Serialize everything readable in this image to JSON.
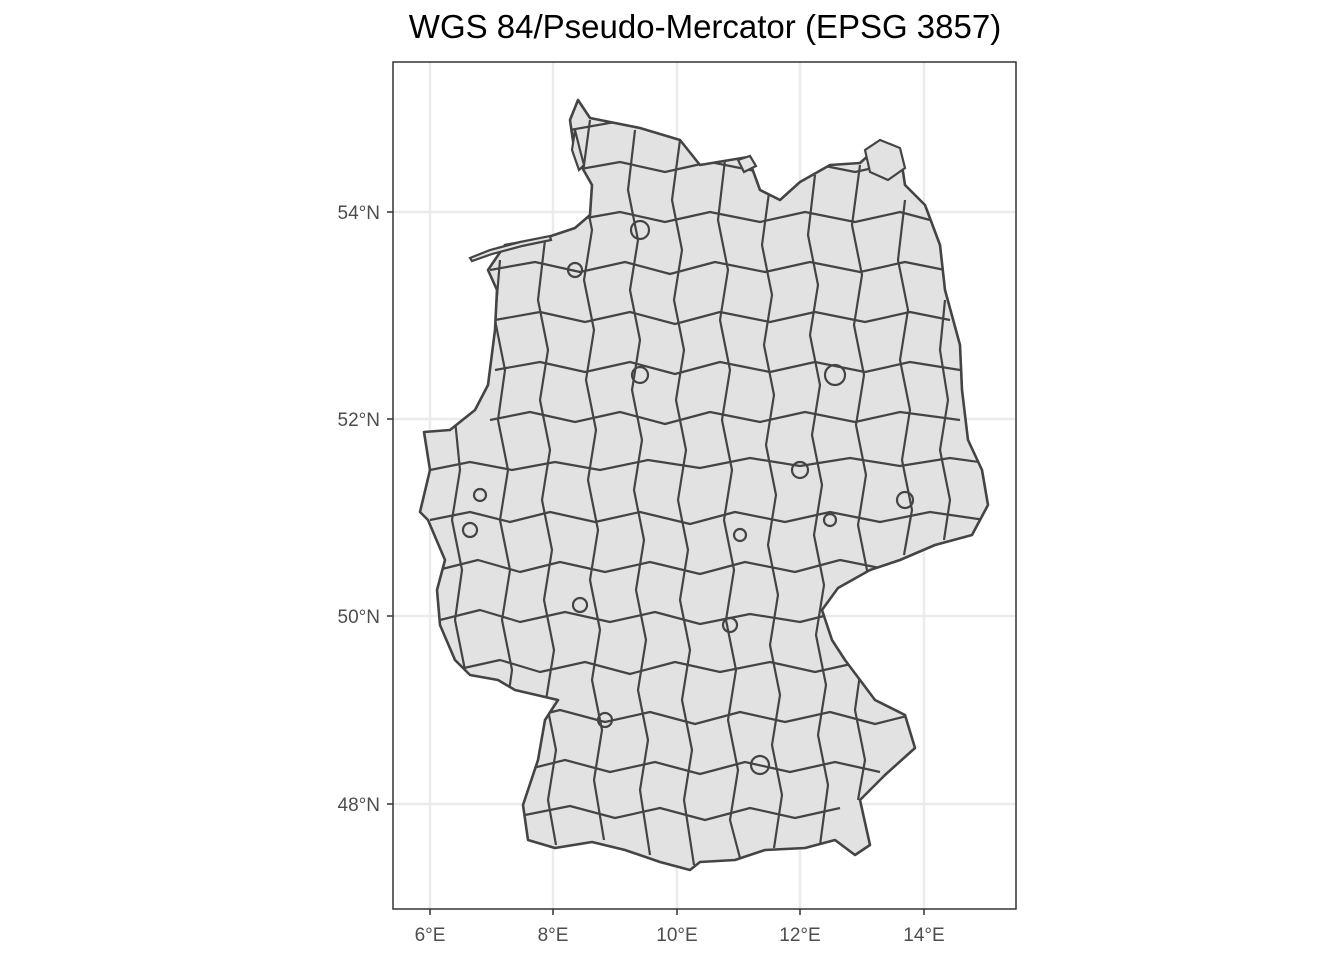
{
  "title": "WGS 84/Pseudo-Mercator (EPSG 3857)",
  "colors": {
    "background": "#ffffff",
    "panel_border": "#333333",
    "grid": "#ebebeb",
    "land_fill": "#e2e2e2",
    "boundary": "#444444",
    "tick_text": "#4d4d4d"
  },
  "map": {
    "projection": "WGS 84/Pseudo-Mercator (EPSG 3857)",
    "region": "Germany district boundaries",
    "x_axis": {
      "ticks": [
        6,
        8,
        10,
        12,
        14
      ],
      "labels": [
        "6°E",
        "8°E",
        "10°E",
        "12°E",
        "14°E"
      ]
    },
    "y_axis": {
      "ticks": [
        48,
        50,
        52,
        54
      ],
      "labels": [
        "48°N",
        "50°N",
        "52°N",
        "54°N"
      ]
    },
    "grid": true
  }
}
